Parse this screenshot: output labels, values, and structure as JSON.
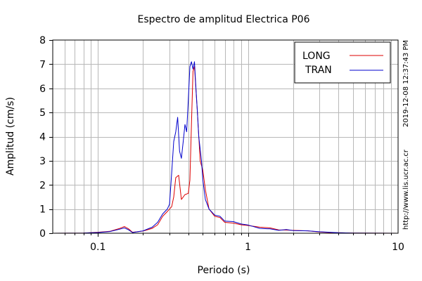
{
  "chart_data": {
    "type": "line",
    "title": "Espectro de amplitud Electrica P06",
    "xlabel": "Periodo (s)",
    "ylabel": "Amplitud (cm/s)",
    "x_scale": "log",
    "xlim": [
      0.05,
      10
    ],
    "ylim": [
      0,
      8
    ],
    "x_tick_labels": [
      "0.1",
      "1",
      "10"
    ],
    "y_tick_labels": [
      "0",
      "1",
      "2",
      "3",
      "4",
      "5",
      "6",
      "7",
      "8"
    ],
    "grid": true,
    "legend_position": "top-right",
    "side_text_top": "2019-12-08 12:37:43 PM",
    "side_text_bottom": "http://www.lis.ucr.ac.cr",
    "series": [
      {
        "name": "LONG",
        "color": "#dd0000",
        "points": [
          [
            0.05,
            0.0
          ],
          [
            0.08,
            0.01
          ],
          [
            0.1,
            0.04
          ],
          [
            0.12,
            0.08
          ],
          [
            0.14,
            0.2
          ],
          [
            0.15,
            0.28
          ],
          [
            0.16,
            0.18
          ],
          [
            0.17,
            0.04
          ],
          [
            0.2,
            0.09
          ],
          [
            0.23,
            0.2
          ],
          [
            0.25,
            0.35
          ],
          [
            0.27,
            0.7
          ],
          [
            0.29,
            0.9
          ],
          [
            0.31,
            1.1
          ],
          [
            0.32,
            1.5
          ],
          [
            0.33,
            2.3
          ],
          [
            0.345,
            2.4
          ],
          [
            0.36,
            1.4
          ],
          [
            0.38,
            1.6
          ],
          [
            0.4,
            1.65
          ],
          [
            0.41,
            2.2
          ],
          [
            0.42,
            4.5
          ],
          [
            0.43,
            6.7
          ],
          [
            0.44,
            6.9
          ],
          [
            0.46,
            5.0
          ],
          [
            0.48,
            3.0
          ],
          [
            0.5,
            2.6
          ],
          [
            0.52,
            1.8
          ],
          [
            0.55,
            1.0
          ],
          [
            0.6,
            0.7
          ],
          [
            0.65,
            0.65
          ],
          [
            0.7,
            0.45
          ],
          [
            0.8,
            0.42
          ],
          [
            0.9,
            0.35
          ],
          [
            1.0,
            0.32
          ],
          [
            1.2,
            0.25
          ],
          [
            1.4,
            0.22
          ],
          [
            1.6,
            0.14
          ],
          [
            1.8,
            0.13
          ],
          [
            2.0,
            0.12
          ],
          [
            2.5,
            0.1
          ],
          [
            3.0,
            0.05
          ],
          [
            3.5,
            0.03
          ],
          [
            4.0,
            0.02
          ],
          [
            5.0,
            0.01
          ],
          [
            10.0,
            0.0
          ]
        ]
      },
      {
        "name": "TRAN",
        "color": "#0000cc",
        "points": [
          [
            0.05,
            0.0
          ],
          [
            0.08,
            0.01
          ],
          [
            0.1,
            0.03
          ],
          [
            0.12,
            0.07
          ],
          [
            0.14,
            0.17
          ],
          [
            0.15,
            0.22
          ],
          [
            0.16,
            0.14
          ],
          [
            0.17,
            0.03
          ],
          [
            0.2,
            0.1
          ],
          [
            0.23,
            0.25
          ],
          [
            0.25,
            0.45
          ],
          [
            0.27,
            0.8
          ],
          [
            0.29,
            1.0
          ],
          [
            0.3,
            1.2
          ],
          [
            0.31,
            2.5
          ],
          [
            0.32,
            3.8
          ],
          [
            0.33,
            4.2
          ],
          [
            0.34,
            4.8
          ],
          [
            0.35,
            3.4
          ],
          [
            0.36,
            3.1
          ],
          [
            0.37,
            3.8
          ],
          [
            0.38,
            4.5
          ],
          [
            0.39,
            4.2
          ],
          [
            0.4,
            5.5
          ],
          [
            0.41,
            6.9
          ],
          [
            0.42,
            7.1
          ],
          [
            0.43,
            6.8
          ],
          [
            0.44,
            7.1
          ],
          [
            0.45,
            6.0
          ],
          [
            0.46,
            5.0
          ],
          [
            0.47,
            4.0
          ],
          [
            0.49,
            3.0
          ],
          [
            0.5,
            2.2
          ],
          [
            0.52,
            1.4
          ],
          [
            0.55,
            1.0
          ],
          [
            0.6,
            0.75
          ],
          [
            0.65,
            0.7
          ],
          [
            0.7,
            0.5
          ],
          [
            0.8,
            0.48
          ],
          [
            0.9,
            0.38
          ],
          [
            1.0,
            0.34
          ],
          [
            1.2,
            0.2
          ],
          [
            1.4,
            0.18
          ],
          [
            1.6,
            0.12
          ],
          [
            1.8,
            0.15
          ],
          [
            2.0,
            0.11
          ],
          [
            2.5,
            0.1
          ],
          [
            3.0,
            0.06
          ],
          [
            3.5,
            0.04
          ],
          [
            4.0,
            0.02
          ],
          [
            5.0,
            0.01
          ],
          [
            10.0,
            0.0
          ]
        ]
      }
    ]
  }
}
